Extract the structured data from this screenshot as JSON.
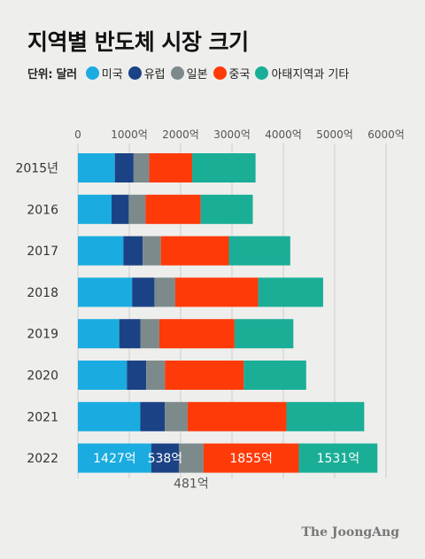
{
  "title": "지역별 반도체 시장 크기",
  "unit_label": "단위: 달러",
  "brand": "The JoongAng",
  "chart_data": {
    "type": "bar",
    "orientation": "horizontal",
    "stacked": true,
    "categories": [
      "2015년",
      "2016",
      "2017",
      "2018",
      "2019",
      "2020",
      "2021",
      "2022"
    ],
    "series": [
      {
        "name": "미국",
        "color": "#1aace0",
        "values": [
          719,
          655,
          885,
          1055,
          805,
          955,
          1215,
          1427
        ]
      },
      {
        "name": "유럽",
        "color": "#1c4286",
        "values": [
          365,
          335,
          375,
          435,
          415,
          375,
          475,
          538
        ]
      },
      {
        "name": "일본",
        "color": "#7c8a8c",
        "values": [
          305,
          325,
          355,
          405,
          365,
          365,
          445,
          481
        ]
      },
      {
        "name": "중국",
        "color": "#ff3a09",
        "values": [
          835,
          1075,
          1325,
          1615,
          1465,
          1535,
          1925,
          1855
        ]
      },
      {
        "name": "아태지역과 기타",
        "color": "#1aae97",
        "values": [
          1235,
          1015,
          1195,
          1265,
          1145,
          1215,
          1515,
          1531
        ]
      }
    ],
    "xlim": [
      0,
      6000
    ],
    "x_ticks": [
      0,
      1000,
      2000,
      3000,
      4000,
      5000,
      6000
    ],
    "x_tick_labels": [
      "0",
      "1000억",
      "2000억",
      "3000억",
      "4000억",
      "5000억",
      "6000억"
    ],
    "data_labels": {
      "category": "2022",
      "inside": [
        "1427억",
        "538억",
        "",
        "1855억",
        "1531억"
      ],
      "below": "481억"
    },
    "grid": true,
    "legend_position": "top"
  }
}
